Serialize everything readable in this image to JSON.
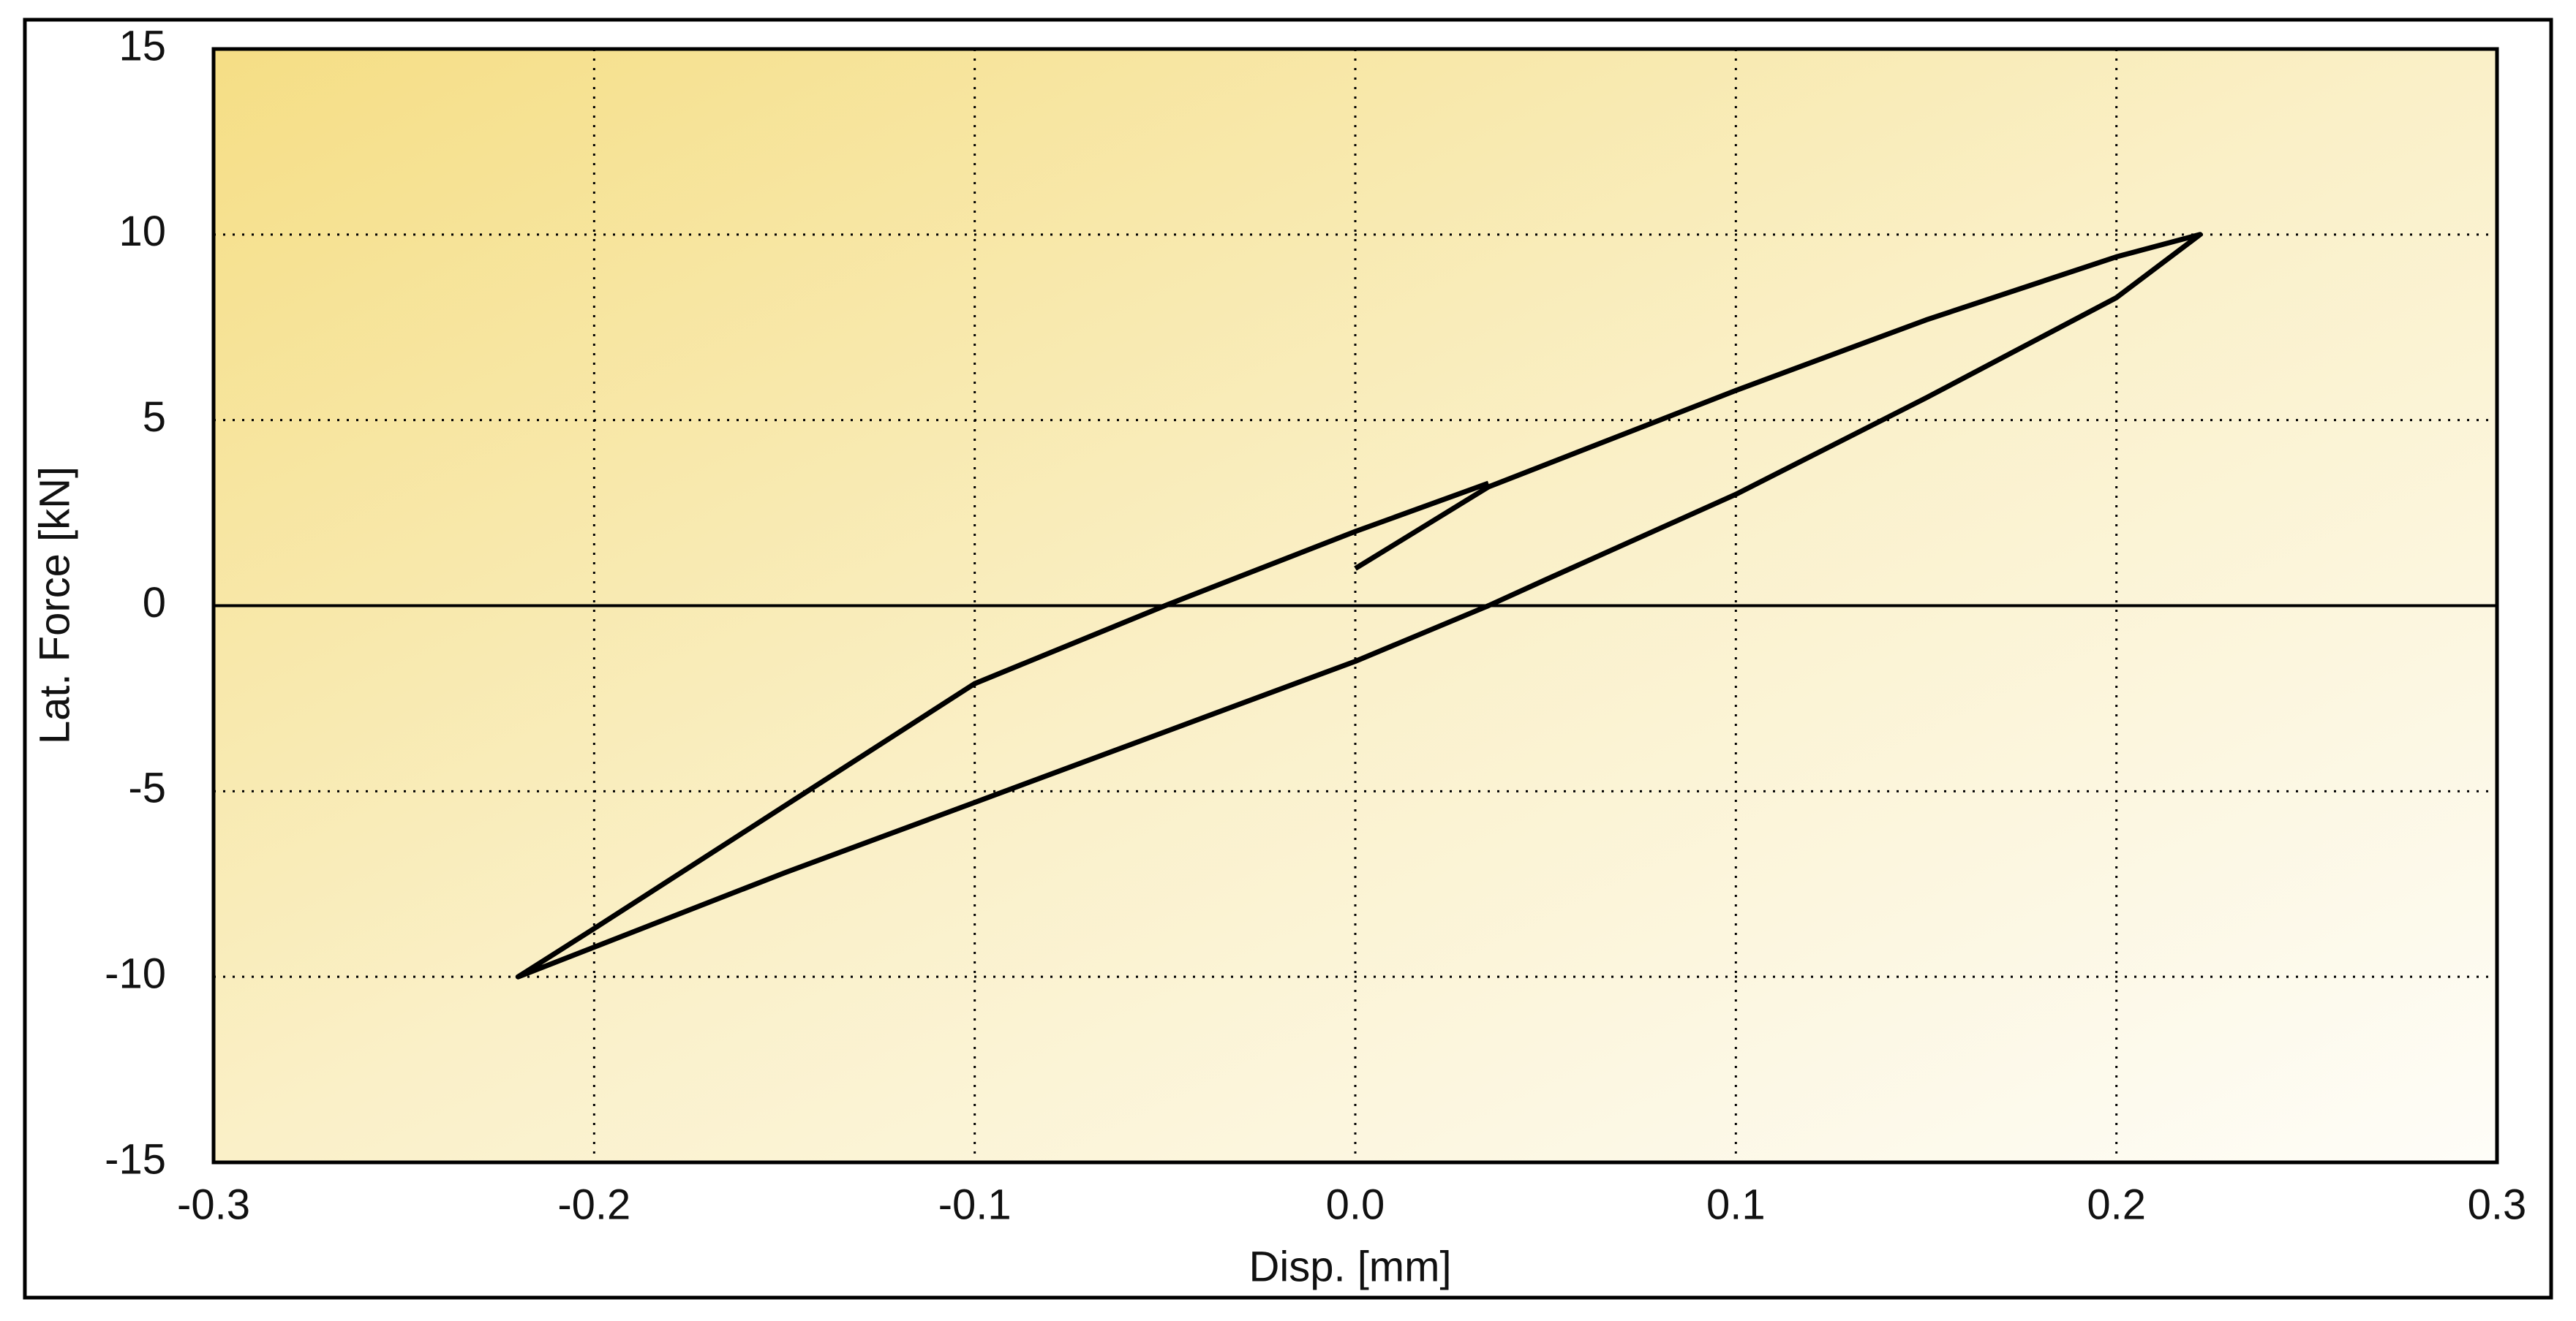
{
  "chart_data": {
    "type": "line",
    "x_label": "Disp. [mm]",
    "y_label": "Lat. Force [kN]",
    "x": [
      0.0,
      0.035,
      0.1,
      0.15,
      0.2,
      0.222,
      0.2,
      0.15,
      0.1,
      0.05,
      0.035,
      0.0,
      -0.05,
      -0.1,
      -0.15,
      -0.2,
      -0.22,
      -0.2,
      -0.15,
      -0.1,
      -0.05,
      0.0,
      0.035
    ],
    "values": [
      1.0,
      3.2,
      5.8,
      7.7,
      9.4,
      10,
      8.3,
      5.6,
      3.0,
      0.7,
      0,
      -1.5,
      -3.4,
      -5.3,
      -7.2,
      -9.2,
      -10,
      -8.7,
      -5.4,
      -2.1,
      0,
      2.0,
      3.3
    ],
    "color": "#000000",
    "xlim": [
      -0.3,
      0.3
    ],
    "xticks": [
      -0.3,
      -0.2,
      -0.1,
      {
        "value": 0,
        "label": "0.0"
      },
      0.1,
      0.2,
      0.3
    ],
    "ylim": [
      -15,
      15
    ],
    "yticks": [
      -15,
      -10,
      -5,
      0,
      5,
      10,
      15
    ],
    "grid": true,
    "zero_line": true
  }
}
